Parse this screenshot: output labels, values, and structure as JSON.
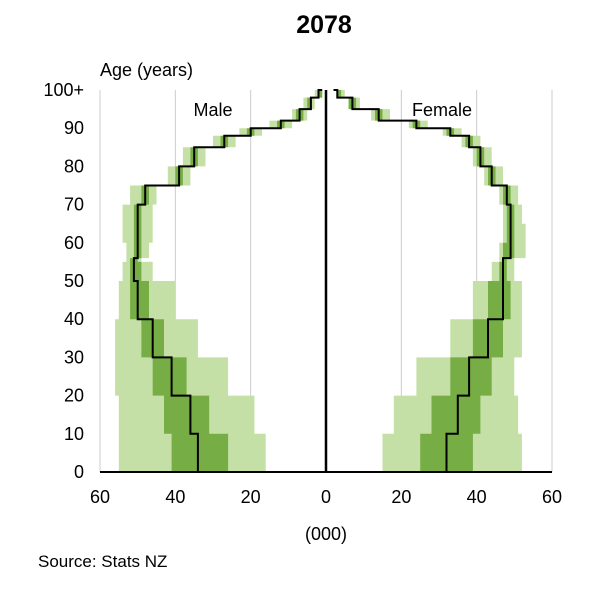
{
  "chart_data": {
    "type": "area",
    "title": "2078",
    "ylabel": "Age (years)",
    "xlabel": "(000)",
    "source": "Source: Stats NZ",
    "xlim": [
      -60,
      60
    ],
    "ylim": [
      0,
      100
    ],
    "x_ticks": [
      "60",
      "40",
      "20",
      "0",
      "20",
      "40",
      "60"
    ],
    "y_ticks": [
      "0",
      "10",
      "20",
      "30",
      "40",
      "50",
      "60",
      "70",
      "80",
      "90",
      "100+"
    ],
    "grid": "vertical",
    "colors": {
      "outer_band": "#c5e0a6",
      "inner_band": "#76ad45",
      "median": "#000000",
      "grid": "#cccccc"
    },
    "series": [
      {
        "name": "Male",
        "ages": [
          0,
          10,
          20,
          30,
          40,
          50,
          55,
          56,
          60,
          65,
          70,
          75,
          80,
          85,
          88,
          90,
          92,
          95,
          98,
          100
        ],
        "outer_low": [
          16,
          19,
          26,
          34,
          40,
          46,
          49,
          53,
          54,
          54,
          52,
          42,
          38,
          30,
          23,
          15,
          9,
          6,
          3,
          1
        ],
        "inner_low": [
          26,
          31,
          37,
          43,
          47,
          49,
          50,
          51,
          51,
          51,
          49,
          40,
          36,
          28,
          21,
          13,
          8,
          5,
          2,
          1
        ],
        "median": [
          34,
          36,
          41,
          46,
          50,
          51,
          51,
          50,
          50,
          50,
          48,
          39,
          35,
          27,
          20,
          12,
          7,
          4,
          2,
          1
        ],
        "inner_high": [
          41,
          43,
          46,
          49,
          52,
          52,
          52,
          49,
          49,
          49,
          47,
          38,
          34,
          26,
          19,
          11,
          6,
          4,
          1,
          0.5
        ],
        "outer_high": [
          55,
          55,
          56,
          56,
          55,
          54,
          53,
          47,
          46,
          46,
          45,
          36,
          32,
          24,
          17,
          9,
          5,
          3,
          1,
          0.3
        ]
      },
      {
        "name": "Female",
        "ages": [
          0,
          10,
          20,
          30,
          40,
          50,
          55,
          56,
          60,
          65,
          70,
          75,
          80,
          85,
          88,
          90,
          92,
          95,
          98,
          100
        ],
        "outer_low": [
          15,
          18,
          24,
          33,
          39,
          44,
          46,
          46,
          47,
          47,
          46,
          42,
          39,
          36,
          31,
          22,
          12,
          6,
          3,
          2
        ],
        "inner_low": [
          25,
          28,
          33,
          39,
          43,
          46,
          47,
          47,
          48,
          48,
          47,
          43,
          40,
          37,
          32,
          23,
          13,
          6,
          3,
          2
        ],
        "median": [
          32,
          35,
          38,
          43,
          47,
          47,
          47,
          49,
          49,
          49,
          48,
          44,
          41,
          38,
          33,
          24,
          14,
          7,
          3,
          2
        ],
        "inner_high": [
          39,
          41,
          44,
          47,
          49,
          48,
          48,
          50,
          50,
          50,
          49,
          45,
          42,
          39,
          34,
          25,
          15,
          8,
          4,
          3
        ],
        "outer_high": [
          52,
          51,
          50,
          52,
          52,
          50,
          50,
          53,
          53,
          52,
          51,
          47,
          44,
          41,
          36,
          27,
          17,
          9,
          5,
          5
        ]
      }
    ],
    "panel_labels": [
      "Male",
      "Female"
    ]
  }
}
